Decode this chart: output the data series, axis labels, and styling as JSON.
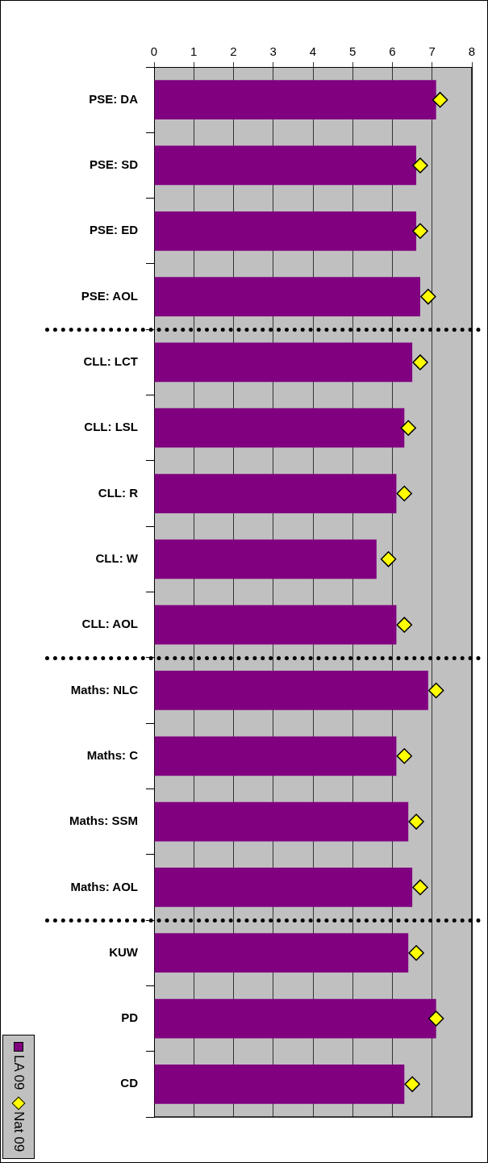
{
  "chart_data": {
    "type": "bar",
    "orientation": "horizontal",
    "categories": [
      "PSE: DA",
      "PSE: SD",
      "PSE: ED",
      "PSE: AOL",
      "CLL: LCT",
      "CLL: LSL",
      "CLL: R",
      "CLL: W",
      "CLL: AOL",
      "Maths: NLC",
      "Maths: C",
      "Maths: SSM",
      "Maths: AOL",
      "KUW",
      "PD",
      "CD"
    ],
    "series": [
      {
        "name": "LA 09",
        "color": "#800080",
        "values": [
          7.1,
          6.6,
          6.6,
          6.7,
          6.5,
          6.3,
          6.1,
          5.6,
          6.1,
          6.9,
          6.1,
          6.4,
          6.5,
          6.4,
          7.1,
          6.3
        ]
      },
      {
        "name": "Nat 09",
        "type": "scatter",
        "color": "#ffff00",
        "values": [
          7.2,
          6.7,
          6.7,
          6.9,
          6.7,
          6.4,
          6.3,
          5.9,
          6.3,
          7.1,
          6.3,
          6.6,
          6.7,
          6.6,
          7.1,
          6.5
        ]
      }
    ],
    "xlim": [
      0,
      8
    ],
    "xticks": [
      0,
      1,
      2,
      3,
      4,
      5,
      6,
      7,
      8
    ],
    "grid": "x",
    "legend": "left",
    "marker": "diamond"
  }
}
